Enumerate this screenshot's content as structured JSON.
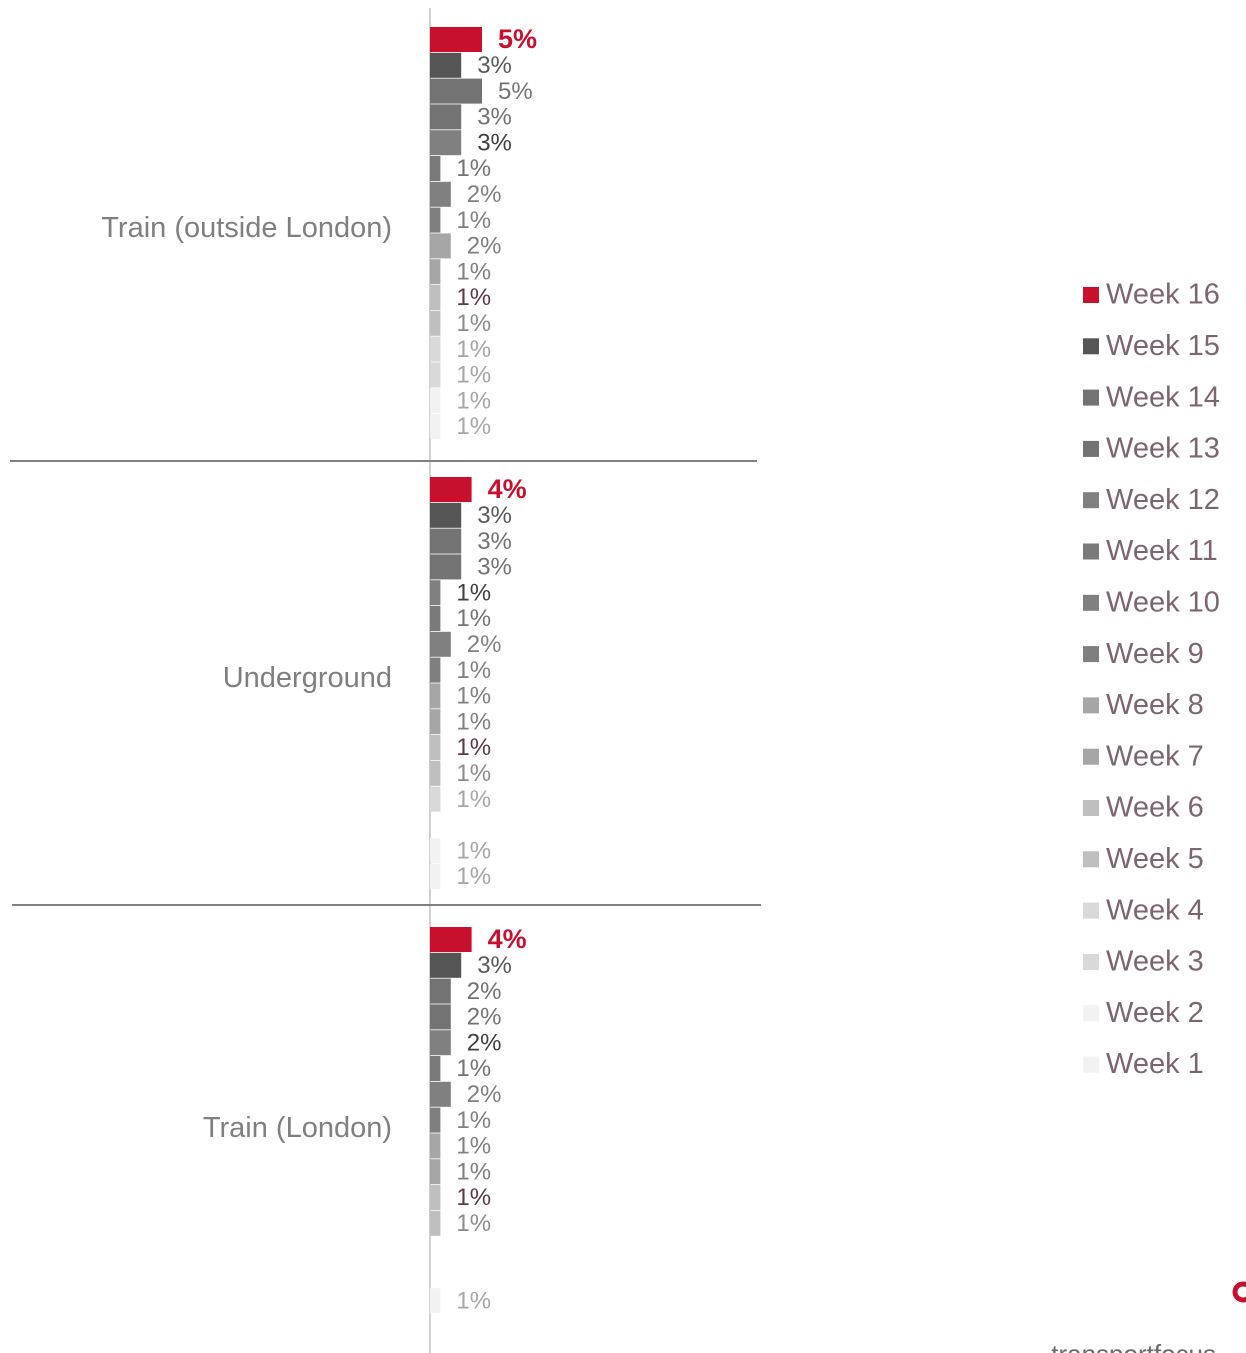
{
  "chart_data": {
    "type": "bar",
    "orientation": "horizontal",
    "categories": [
      "Train (outside London)",
      "Underground",
      "Train (London)"
    ],
    "brand": "transportfocus",
    "series": [
      {
        "name": "Week 16",
        "color": "#c8102e",
        "label_color": "#c8102e",
        "values": [
          5,
          4,
          4
        ],
        "value_labels": [
          "5%",
          "4%",
          "4%"
        ]
      },
      {
        "name": "Week 15",
        "color": "#555555",
        "label_color": "#595959",
        "values": [
          3,
          3,
          3
        ],
        "value_labels": [
          "3%",
          "3%",
          "3%"
        ]
      },
      {
        "name": "Week 14",
        "color": "#737373",
        "label_color": "#737373",
        "values": [
          5,
          3,
          2
        ],
        "value_labels": [
          "5%",
          "3%",
          "2%"
        ]
      },
      {
        "name": "Week 13",
        "color": "#737373",
        "label_color": "#737373",
        "values": [
          3,
          3,
          2
        ],
        "value_labels": [
          "3%",
          "3%",
          "2%"
        ]
      },
      {
        "name": "Week 12",
        "color": "#808080",
        "label_color": "#404040",
        "values": [
          3,
          1,
          2
        ],
        "value_labels": [
          "3%",
          "1%",
          "2%"
        ]
      },
      {
        "name": "Week 11",
        "color": "#7a7a7a",
        "label_color": "#737373",
        "values": [
          1,
          1,
          1
        ],
        "value_labels": [
          "1%",
          "1%",
          "1%"
        ]
      },
      {
        "name": "Week 10",
        "color": "#808080",
        "label_color": "#808080",
        "values": [
          2,
          2,
          2
        ],
        "value_labels": [
          "2%",
          "2%",
          "2%"
        ]
      },
      {
        "name": "Week 9",
        "color": "#7f7f7f",
        "label_color": "#808080",
        "values": [
          1,
          1,
          1
        ],
        "value_labels": [
          "1%",
          "1%",
          "1%"
        ]
      },
      {
        "name": "Week 8",
        "color": "#a6a6a6",
        "label_color": "#808080",
        "values": [
          2,
          1,
          1
        ],
        "value_labels": [
          "2%",
          "1%",
          "1%"
        ]
      },
      {
        "name": "Week 7",
        "color": "#a6a6a6",
        "label_color": "#808080",
        "values": [
          1,
          1,
          1
        ],
        "value_labels": [
          "1%",
          "1%",
          "1%"
        ]
      },
      {
        "name": "Week 6",
        "color": "#bfbfbf",
        "label_color": "#5a3a4a",
        "values": [
          1,
          1,
          1
        ],
        "value_labels": [
          "1%",
          "1%",
          "1%"
        ]
      },
      {
        "name": "Week 5",
        "color": "#bfbfbf",
        "label_color": "#8c8c8c",
        "values": [
          1,
          1,
          1
        ],
        "value_labels": [
          "1%",
          "1%",
          "1%"
        ]
      },
      {
        "name": "Week 4",
        "color": "#d9d9d9",
        "label_color": "#a6a6a6",
        "values": [
          1,
          1,
          null
        ],
        "value_labels": [
          "1%",
          "1%",
          null
        ]
      },
      {
        "name": "Week 3",
        "color": "#d9d9d9",
        "label_color": "#a6a6a6",
        "values": [
          1,
          null,
          null
        ],
        "value_labels": [
          "1%",
          null,
          null
        ]
      },
      {
        "name": "Week 2",
        "color": "#f2f2f2",
        "label_color": "#a6a6a6",
        "values": [
          1,
          1,
          1
        ],
        "value_labels": [
          "1%",
          "1%",
          "1%"
        ]
      },
      {
        "name": "Week 1",
        "color": "#f2f2f2",
        "label_color": "#a6a6a6",
        "values": [
          1,
          1,
          null
        ],
        "value_labels": [
          "1%",
          "1%",
          null
        ]
      }
    ]
  }
}
